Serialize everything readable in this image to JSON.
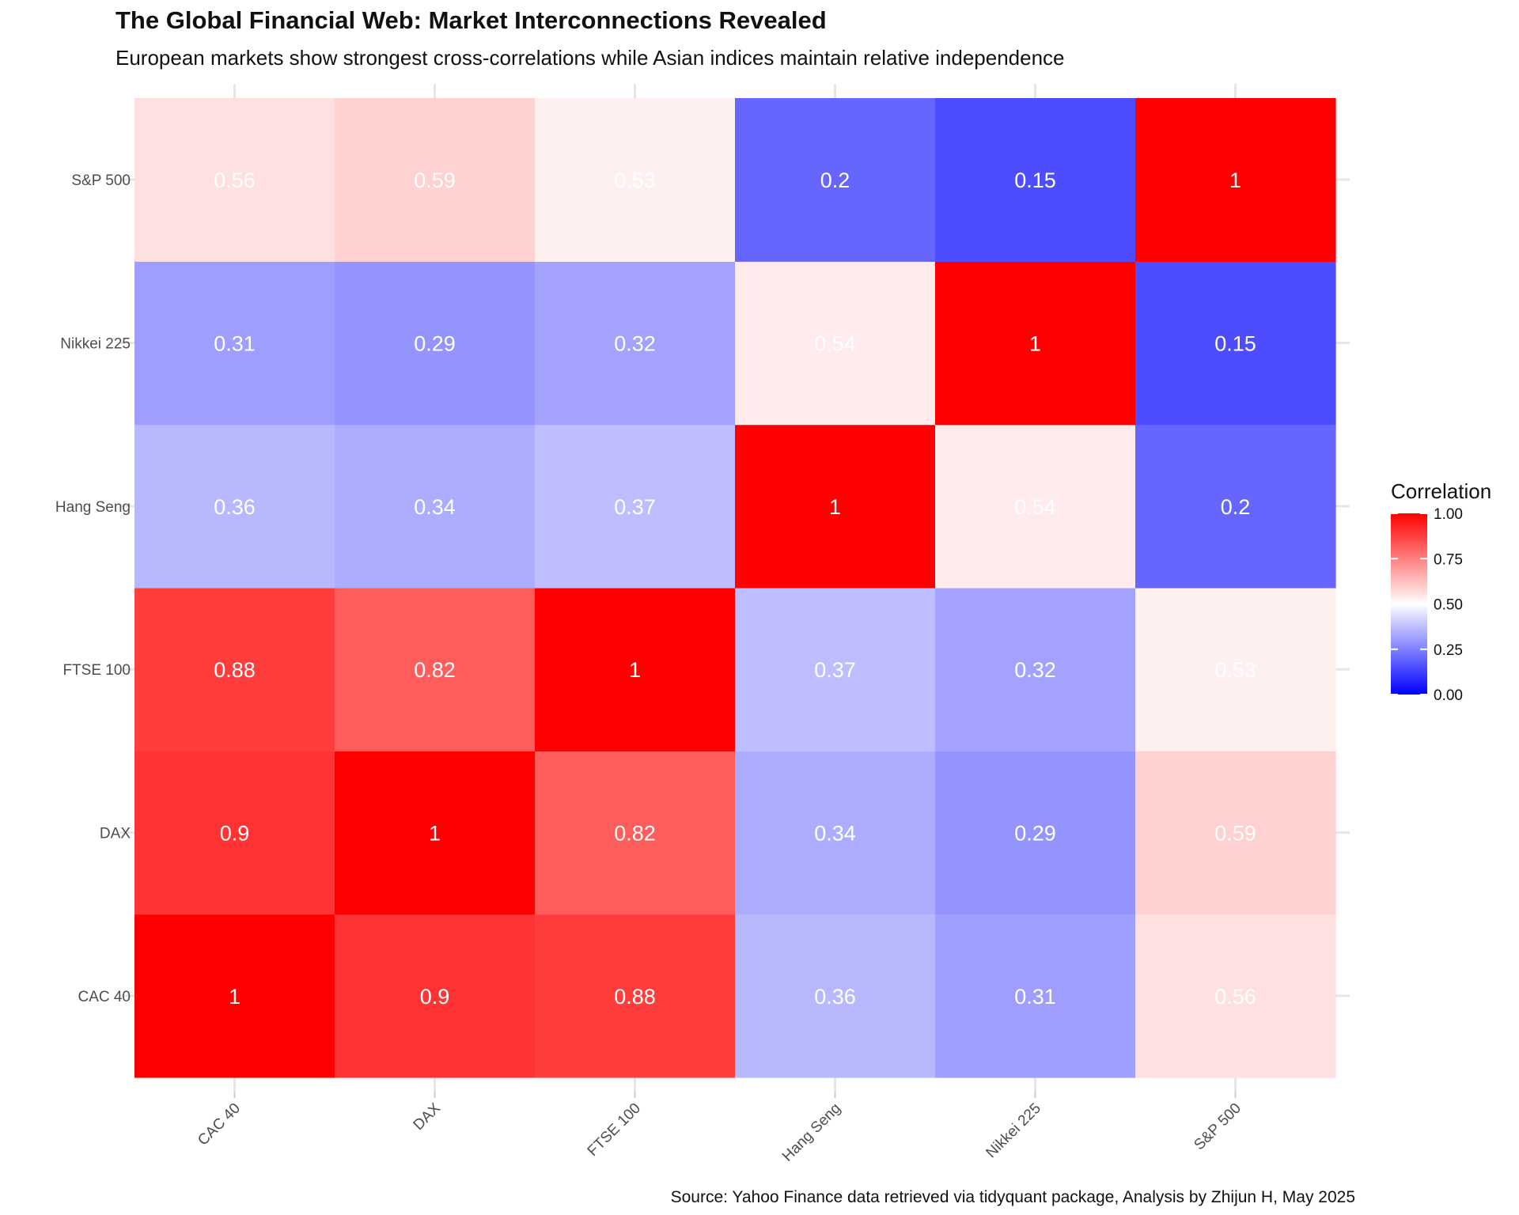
{
  "chart_data": {
    "type": "heatmap",
    "title": "The Global Financial Web: Market Interconnections Revealed",
    "subtitle": "European markets show strongest cross-correlations while Asian indices maintain relative independence",
    "caption": "Source: Yahoo Finance data retrieved via tidyquant package, Analysis by Zhijun H, May 2025",
    "xlabel": "",
    "ylabel": "",
    "x_categories": [
      "CAC 40",
      "DAX",
      "FTSE 100",
      "Hang Seng",
      "Nikkei 225",
      "S&P 500"
    ],
    "y_categories": [
      "CAC 40",
      "DAX",
      "FTSE 100",
      "Hang Seng",
      "Nikkei 225",
      "S&P 500"
    ],
    "matrix": [
      [
        1,
        0.9,
        0.88,
        0.36,
        0.31,
        0.56
      ],
      [
        0.9,
        1,
        0.82,
        0.34,
        0.29,
        0.59
      ],
      [
        0.88,
        0.82,
        1,
        0.37,
        0.32,
        0.53
      ],
      [
        0.36,
        0.34,
        0.37,
        1,
        0.54,
        0.2
      ],
      [
        0.31,
        0.29,
        0.32,
        0.54,
        1,
        0.15
      ],
      [
        0.56,
        0.59,
        0.53,
        0.2,
        0.15,
        1
      ]
    ],
    "legend": {
      "title": "Correlation",
      "ticks": [
        "0.00",
        "0.25",
        "0.50",
        "0.75",
        "1.00"
      ],
      "range": [
        0,
        1
      ],
      "placement": "right"
    },
    "color_scale": {
      "low": "#0000ff",
      "mid": "#ffffff",
      "high": "#ff0000",
      "midpoint": 0.5
    },
    "grid": true
  }
}
